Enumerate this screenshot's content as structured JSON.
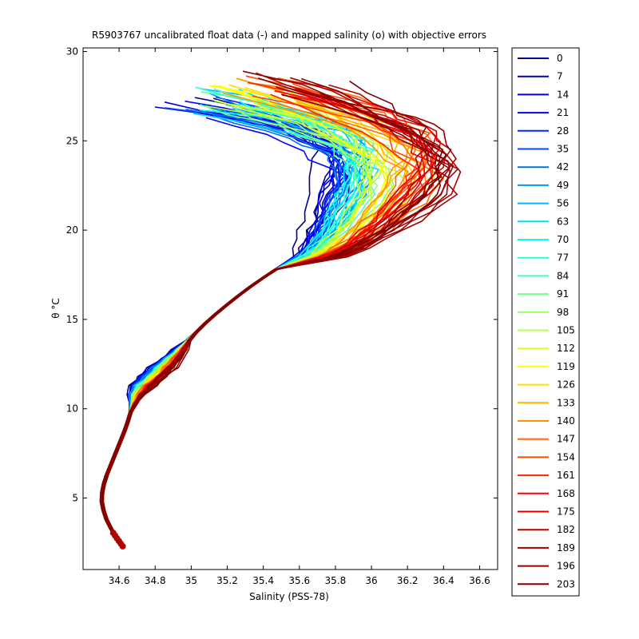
{
  "chart_data": {
    "type": "line",
    "title": "R5903767 uncalibrated float data (-) and mapped salinity (o) with objective errors",
    "xlabel": "Salinity (PSS-78)",
    "ylabel": "θ °C",
    "xlim": [
      34.4,
      36.7
    ],
    "ylim": [
      1,
      30.2
    ],
    "xticks": [
      "34.6",
      "34.8",
      "35",
      "35.2",
      "35.4",
      "35.6",
      "35.8",
      "36",
      "36.2",
      "36.4",
      "36.6"
    ],
    "xtick_values": [
      34.6,
      34.8,
      35.0,
      35.2,
      35.4,
      35.6,
      35.8,
      36.0,
      36.2,
      36.4,
      36.6
    ],
    "yticks": [
      "5",
      "10",
      "15",
      "20",
      "25",
      "30"
    ],
    "ytick_values": [
      5,
      10,
      15,
      20,
      25,
      30
    ],
    "grid": false,
    "legend_position": "right-outside",
    "series": [
      {
        "name": "0",
        "color": "#00008f"
      },
      {
        "name": "7",
        "color": "#0000b6"
      },
      {
        "name": "14",
        "color": "#0000dc"
      },
      {
        "name": "21",
        "color": "#0000ff"
      },
      {
        "name": "28",
        "color": "#0024ff"
      },
      {
        "name": "35",
        "color": "#0049ff"
      },
      {
        "name": "42",
        "color": "#006dff"
      },
      {
        "name": "49",
        "color": "#0092ff"
      },
      {
        "name": "56",
        "color": "#00b6ff"
      },
      {
        "name": "63",
        "color": "#00dbff"
      },
      {
        "name": "70",
        "color": "#00ffff"
      },
      {
        "name": "77",
        "color": "#24ffdb"
      },
      {
        "name": "84",
        "color": "#49ffb6"
      },
      {
        "name": "91",
        "color": "#6dff92"
      },
      {
        "name": "98",
        "color": "#92ff6d"
      },
      {
        "name": "105",
        "color": "#b6ff49"
      },
      {
        "name": "112",
        "color": "#dbff24"
      },
      {
        "name": "119",
        "color": "#ffff00"
      },
      {
        "name": "126",
        "color": "#ffdb00"
      },
      {
        "name": "133",
        "color": "#ffb600"
      },
      {
        "name": "140",
        "color": "#ff9200"
      },
      {
        "name": "147",
        "color": "#ff6d00"
      },
      {
        "name": "154",
        "color": "#ff4900"
      },
      {
        "name": "161",
        "color": "#ff2400"
      },
      {
        "name": "168",
        "color": "#ff0000"
      },
      {
        "name": "175",
        "color": "#dc0000"
      },
      {
        "name": "182",
        "color": "#b60000"
      },
      {
        "name": "189",
        "color": "#a30000"
      },
      {
        "name": "196",
        "color": "#940000"
      },
      {
        "name": "203",
        "color": "#800000"
      }
    ]
  }
}
